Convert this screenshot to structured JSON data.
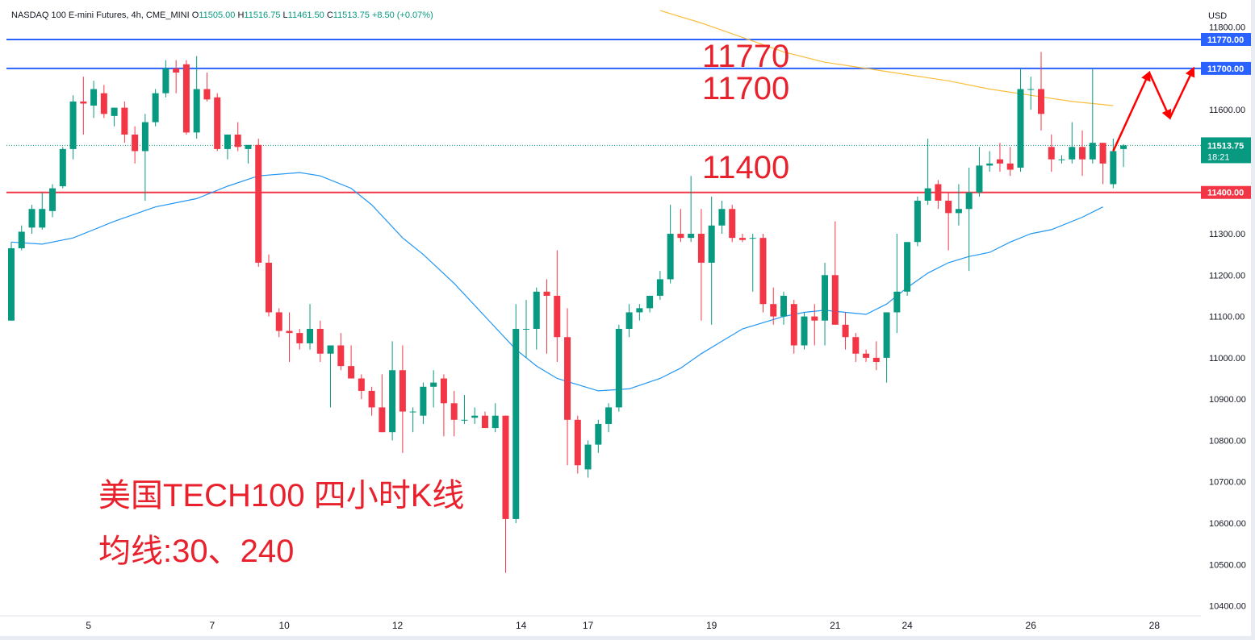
{
  "header": {
    "symbol": "NASDAQ 100 E-mini Futures, 4h, CME_MINI",
    "open_label": "O",
    "open_value": "11505.00",
    "high_label": "H",
    "high_value": "11516.75",
    "low_label": "L",
    "low_value": "11461.50",
    "close_label": "C",
    "close_value": "11513.75",
    "change": "+8.50 (+0.07%)"
  },
  "currency": "USD",
  "annotations": {
    "main_title": "美国TECH100 四小时K线",
    "ma_label": "均线:30、240",
    "level_1": "11770",
    "level_2": "11700",
    "level_3": "11400"
  },
  "colors": {
    "up": "#089981",
    "down": "#f23645",
    "blue_line": "#2962ff",
    "red_line": "#f23645",
    "ma30": "#2196f3",
    "ma240": "#fbbd3d",
    "arrow": "#ff0000",
    "text_red": "#e8212c"
  },
  "chart_data": {
    "type": "candlestick",
    "ylim": [
      10380,
      11830
    ],
    "y_ticks": [
      {
        "value": 11800,
        "label": "11800.00"
      },
      {
        "value": 11700,
        "label": "11700.00"
      },
      {
        "value": 11600,
        "label": "11600.00"
      },
      {
        "value": 11500,
        "label": "11500.00"
      },
      {
        "value": 11400,
        "label": "11400.00"
      },
      {
        "value": 11300,
        "label": "11300.00"
      },
      {
        "value": 11200,
        "label": "11200.00"
      },
      {
        "value": 11100,
        "label": "11100.00"
      },
      {
        "value": 11000,
        "label": "11000.00"
      },
      {
        "value": 10900,
        "label": "10900.00"
      },
      {
        "value": 10800,
        "label": "10800.00"
      },
      {
        "value": 10700,
        "label": "10700.00"
      },
      {
        "value": 10600,
        "label": "10600.00"
      },
      {
        "value": 10500,
        "label": "10500.00"
      },
      {
        "value": 10400,
        "label": "10400.00"
      }
    ],
    "x_ticks": [
      {
        "index": 7.5,
        "label": "5"
      },
      {
        "index": 19.5,
        "label": "7"
      },
      {
        "index": 26.5,
        "label": "10"
      },
      {
        "index": 37.5,
        "label": "12"
      },
      {
        "index": 49.5,
        "label": "14"
      },
      {
        "index": 56,
        "label": "17"
      },
      {
        "index": 68,
        "label": "19"
      },
      {
        "index": 80,
        "label": "21"
      },
      {
        "index": 87,
        "label": "24"
      },
      {
        "index": 99,
        "label": "26"
      },
      {
        "index": 111,
        "label": "28"
      }
    ],
    "horizontal_lines": [
      {
        "value": 11770,
        "label": "11770.00",
        "color": "#2962ff"
      },
      {
        "value": 11700,
        "label": "11700.00",
        "color": "#2962ff"
      },
      {
        "value": 11400,
        "label": "11400.00",
        "color": "#f23645"
      }
    ],
    "last_price": {
      "value": 11513.75,
      "label": "11513.75",
      "countdown": "18:21"
    },
    "candles": [
      {
        "o": 11090,
        "h": 11280,
        "l": 11090,
        "c": 11265
      },
      {
        "o": 11265,
        "h": 11320,
        "l": 11260,
        "c": 11305
      },
      {
        "o": 11315,
        "h": 11370,
        "l": 11300,
        "c": 11360
      },
      {
        "o": 11315,
        "h": 11400,
        "l": 11310,
        "c": 11360
      },
      {
        "o": 11355,
        "h": 11420,
        "l": 11340,
        "c": 11410
      },
      {
        "o": 11415,
        "h": 11510,
        "l": 11410,
        "c": 11505
      },
      {
        "o": 11505,
        "h": 11635,
        "l": 11480,
        "c": 11620
      },
      {
        "o": 11620,
        "h": 11680,
        "l": 11540,
        "c": 11615
      },
      {
        "o": 11610,
        "h": 11670,
        "l": 11580,
        "c": 11650
      },
      {
        "o": 11640,
        "h": 11660,
        "l": 11580,
        "c": 11590
      },
      {
        "o": 11585,
        "h": 11600,
        "l": 11560,
        "c": 11605
      },
      {
        "o": 11605,
        "h": 11620,
        "l": 11520,
        "c": 11540
      },
      {
        "o": 11540,
        "h": 11560,
        "l": 11470,
        "c": 11500
      },
      {
        "o": 11500,
        "h": 11590,
        "l": 11380,
        "c": 11570
      },
      {
        "o": 11570,
        "h": 11650,
        "l": 11560,
        "c": 11640
      },
      {
        "o": 11640,
        "h": 11720,
        "l": 11630,
        "c": 11700
      },
      {
        "o": 11700,
        "h": 11720,
        "l": 11640,
        "c": 11690
      },
      {
        "o": 11710,
        "h": 11720,
        "l": 11540,
        "c": 11545
      },
      {
        "o": 11545,
        "h": 11730,
        "l": 11530,
        "c": 11650
      },
      {
        "o": 11650,
        "h": 11690,
        "l": 11620,
        "c": 11625
      },
      {
        "o": 11630,
        "h": 11640,
        "l": 11500,
        "c": 11505
      },
      {
        "o": 11505,
        "h": 11540,
        "l": 11480,
        "c": 11540
      },
      {
        "o": 11540,
        "h": 11570,
        "l": 11500,
        "c": 11510
      },
      {
        "o": 11505,
        "h": 11510,
        "l": 11470,
        "c": 11515
      },
      {
        "o": 11515,
        "h": 11530,
        "l": 11220,
        "c": 11230
      },
      {
        "o": 11230,
        "h": 11250,
        "l": 11100,
        "c": 11110
      },
      {
        "o": 11110,
        "h": 11120,
        "l": 11050,
        "c": 11065
      },
      {
        "o": 11065,
        "h": 11110,
        "l": 10990,
        "c": 11060
      },
      {
        "o": 11060,
        "h": 11070,
        "l": 11020,
        "c": 11035
      },
      {
        "o": 11035,
        "h": 11130,
        "l": 11020,
        "c": 11070
      },
      {
        "o": 11070,
        "h": 11090,
        "l": 10990,
        "c": 11010
      },
      {
        "o": 11010,
        "h": 11020,
        "l": 10880,
        "c": 11030
      },
      {
        "o": 11030,
        "h": 11060,
        "l": 10970,
        "c": 10980
      },
      {
        "o": 10980,
        "h": 11030,
        "l": 10950,
        "c": 10950
      },
      {
        "o": 10950,
        "h": 10960,
        "l": 10900,
        "c": 10920
      },
      {
        "o": 10920,
        "h": 10930,
        "l": 10860,
        "c": 10880
      },
      {
        "o": 10880,
        "h": 10960,
        "l": 10820,
        "c": 10820
      },
      {
        "o": 10820,
        "h": 11040,
        "l": 10800,
        "c": 10970
      },
      {
        "o": 10970,
        "h": 11030,
        "l": 10770,
        "c": 10870
      },
      {
        "o": 10870,
        "h": 10880,
        "l": 10820,
        "c": 10870
      },
      {
        "o": 10860,
        "h": 10940,
        "l": 10840,
        "c": 10930
      },
      {
        "o": 10930,
        "h": 10970,
        "l": 10880,
        "c": 10940
      },
      {
        "o": 10950,
        "h": 10960,
        "l": 10810,
        "c": 10890
      },
      {
        "o": 10890,
        "h": 10920,
        "l": 10810,
        "c": 10850
      },
      {
        "o": 10850,
        "h": 10910,
        "l": 10840,
        "c": 10850
      },
      {
        "o": 10855,
        "h": 10880,
        "l": 10840,
        "c": 10860
      },
      {
        "o": 10860,
        "h": 10870,
        "l": 10830,
        "c": 10830
      },
      {
        "o": 10830,
        "h": 10890,
        "l": 10820,
        "c": 10860
      },
      {
        "o": 10860,
        "h": 10860,
        "l": 10480,
        "c": 10610
      },
      {
        "o": 10610,
        "h": 11130,
        "l": 10600,
        "c": 11070
      },
      {
        "o": 11070,
        "h": 11140,
        "l": 11000,
        "c": 11070
      },
      {
        "o": 11070,
        "h": 11170,
        "l": 11020,
        "c": 11160
      },
      {
        "o": 11160,
        "h": 11190,
        "l": 11010,
        "c": 11150
      },
      {
        "o": 11150,
        "h": 11260,
        "l": 10990,
        "c": 11050
      },
      {
        "o": 11050,
        "h": 11120,
        "l": 10740,
        "c": 10850
      },
      {
        "o": 10850,
        "h": 10860,
        "l": 10720,
        "c": 10740
      },
      {
        "o": 10730,
        "h": 10800,
        "l": 10710,
        "c": 10790
      },
      {
        "o": 10790,
        "h": 10850,
        "l": 10770,
        "c": 10840
      },
      {
        "o": 10840,
        "h": 10890,
        "l": 10820,
        "c": 10880
      },
      {
        "o": 10880,
        "h": 11080,
        "l": 10870,
        "c": 11070
      },
      {
        "o": 11070,
        "h": 11130,
        "l": 11050,
        "c": 11110
      },
      {
        "o": 11110,
        "h": 11130,
        "l": 11090,
        "c": 11120
      },
      {
        "o": 11120,
        "h": 11150,
        "l": 11110,
        "c": 11150
      },
      {
        "o": 11150,
        "h": 11210,
        "l": 11140,
        "c": 11190
      },
      {
        "o": 11190,
        "h": 11370,
        "l": 11180,
        "c": 11300
      },
      {
        "o": 11300,
        "h": 11360,
        "l": 11280,
        "c": 11290
      },
      {
        "o": 11290,
        "h": 11440,
        "l": 11280,
        "c": 11300
      },
      {
        "o": 11300,
        "h": 11360,
        "l": 11090,
        "c": 11230
      },
      {
        "o": 11230,
        "h": 11390,
        "l": 11080,
        "c": 11320
      },
      {
        "o": 11320,
        "h": 11380,
        "l": 11300,
        "c": 11360
      },
      {
        "o": 11360,
        "h": 11370,
        "l": 11280,
        "c": 11290
      },
      {
        "o": 11290,
        "h": 11300,
        "l": 11280,
        "c": 11285
      },
      {
        "o": 11290,
        "h": 11300,
        "l": 11160,
        "c": 11290
      },
      {
        "o": 11290,
        "h": 11300,
        "l": 11110,
        "c": 11130
      },
      {
        "o": 11130,
        "h": 11170,
        "l": 11080,
        "c": 11100
      },
      {
        "o": 11100,
        "h": 11160,
        "l": 11080,
        "c": 11150
      },
      {
        "o": 11130,
        "h": 11140,
        "l": 11010,
        "c": 11030
      },
      {
        "o": 11030,
        "h": 11110,
        "l": 11020,
        "c": 11100
      },
      {
        "o": 11100,
        "h": 11130,
        "l": 11030,
        "c": 11090
      },
      {
        "o": 11090,
        "h": 11230,
        "l": 11030,
        "c": 11200
      },
      {
        "o": 11200,
        "h": 11330,
        "l": 11080,
        "c": 11080
      },
      {
        "o": 11080,
        "h": 11110,
        "l": 11020,
        "c": 11050
      },
      {
        "o": 11050,
        "h": 11060,
        "l": 10990,
        "c": 11010
      },
      {
        "o": 11010,
        "h": 11020,
        "l": 10990,
        "c": 11000
      },
      {
        "o": 11000,
        "h": 11040,
        "l": 10970,
        "c": 10990
      },
      {
        "o": 11000,
        "h": 11110,
        "l": 10940,
        "c": 11110
      },
      {
        "o": 11110,
        "h": 11300,
        "l": 11060,
        "c": 11160
      },
      {
        "o": 11160,
        "h": 11280,
        "l": 11150,
        "c": 11280
      },
      {
        "o": 11280,
        "h": 11390,
        "l": 11270,
        "c": 11380
      },
      {
        "o": 11380,
        "h": 11530,
        "l": 11370,
        "c": 11410
      },
      {
        "o": 11420,
        "h": 11430,
        "l": 11360,
        "c": 11380
      },
      {
        "o": 11380,
        "h": 11400,
        "l": 11260,
        "c": 11350
      },
      {
        "o": 11350,
        "h": 11420,
        "l": 11320,
        "c": 11360
      },
      {
        "o": 11360,
        "h": 11460,
        "l": 11210,
        "c": 11400
      },
      {
        "o": 11400,
        "h": 11510,
        "l": 11390,
        "c": 11465
      },
      {
        "o": 11465,
        "h": 11500,
        "l": 11450,
        "c": 11470
      },
      {
        "o": 11480,
        "h": 11520,
        "l": 11450,
        "c": 11470
      },
      {
        "o": 11470,
        "h": 11510,
        "l": 11440,
        "c": 11455
      },
      {
        "o": 11460,
        "h": 11700,
        "l": 11450,
        "c": 11650
      },
      {
        "o": 11650,
        "h": 11680,
        "l": 11600,
        "c": 11650
      },
      {
        "o": 11650,
        "h": 11740,
        "l": 11550,
        "c": 11590
      },
      {
        "o": 11510,
        "h": 11540,
        "l": 11450,
        "c": 11480
      },
      {
        "o": 11480,
        "h": 11490,
        "l": 11470,
        "c": 11480
      },
      {
        "o": 11480,
        "h": 11570,
        "l": 11470,
        "c": 11510
      },
      {
        "o": 11510,
        "h": 11550,
        "l": 11440,
        "c": 11480
      },
      {
        "o": 11480,
        "h": 11700,
        "l": 11470,
        "c": 11520
      },
      {
        "o": 11520,
        "h": 11520,
        "l": 11420,
        "c": 11470
      },
      {
        "o": 11420,
        "h": 11530,
        "l": 11410,
        "c": 11500
      },
      {
        "o": 11505,
        "h": 11516.75,
        "l": 11461.5,
        "c": 11513.75
      }
    ],
    "ma30": [
      [
        0,
        11280
      ],
      [
        3,
        11275
      ],
      [
        6,
        11290
      ],
      [
        10,
        11330
      ],
      [
        14,
        11365
      ],
      [
        18,
        11385
      ],
      [
        21,
        11415
      ],
      [
        24,
        11440
      ],
      [
        28,
        11448
      ],
      [
        30,
        11440
      ],
      [
        33,
        11410
      ],
      [
        35,
        11370
      ],
      [
        38,
        11290
      ],
      [
        40,
        11250
      ],
      [
        43,
        11180
      ],
      [
        46,
        11100
      ],
      [
        49,
        11020
      ],
      [
        51,
        10980
      ],
      [
        53,
        10950
      ],
      [
        55,
        10935
      ],
      [
        57,
        10920
      ],
      [
        60,
        10925
      ],
      [
        63,
        10950
      ],
      [
        65,
        10975
      ],
      [
        67,
        11010
      ],
      [
        69,
        11040
      ],
      [
        71,
        11070
      ],
      [
        73,
        11085
      ],
      [
        75,
        11100
      ],
      [
        77,
        11110
      ],
      [
        79,
        11115
      ],
      [
        81,
        11110
      ],
      [
        83,
        11105
      ],
      [
        85,
        11130
      ],
      [
        87,
        11170
      ],
      [
        89,
        11205
      ],
      [
        91,
        11230
      ],
      [
        93,
        11245
      ],
      [
        95,
        11255
      ],
      [
        97,
        11280
      ],
      [
        99,
        11300
      ],
      [
        101,
        11310
      ],
      [
        104,
        11340
      ],
      [
        106,
        11365
      ]
    ],
    "ma240": [
      [
        63,
        11840
      ],
      [
        67,
        11810
      ],
      [
        71,
        11775
      ],
      [
        75,
        11740
      ],
      [
        79,
        11715
      ],
      [
        83,
        11700
      ],
      [
        87,
        11685
      ],
      [
        91,
        11670
      ],
      [
        95,
        11650
      ],
      [
        99,
        11635
      ],
      [
        103,
        11620
      ],
      [
        107,
        11610
      ]
    ],
    "arrows": [
      {
        "from": [
          107,
          11500
        ],
        "to": [
          110.5,
          11690
        ],
        "color": "#ff0000"
      },
      {
        "from": [
          110.5,
          11690
        ],
        "to": [
          112.5,
          11580
        ],
        "color": "#ff0000"
      },
      {
        "from": [
          112.5,
          11580
        ],
        "to": [
          114.8,
          11700
        ],
        "color": "#ff0000"
      }
    ]
  }
}
